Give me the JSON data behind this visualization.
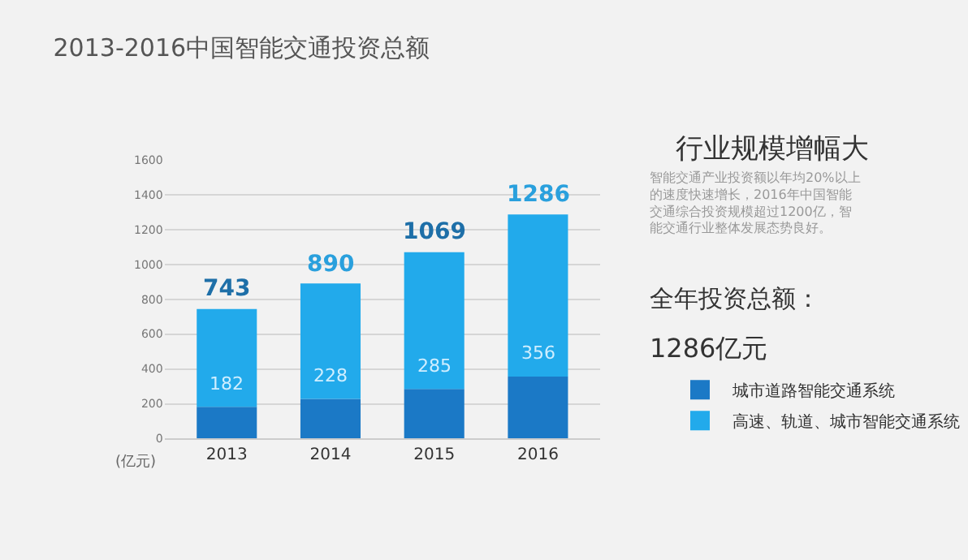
{
  "chart_data": {
    "type": "bar",
    "title": "2013-2016中国智能交通投资总额",
    "ylabel": "(亿元)",
    "categories": [
      "2013",
      "2014",
      "2015",
      "2016"
    ],
    "stacked": true,
    "series": [
      {
        "name": "城市道路智能交通系统",
        "color": "#1b79c6",
        "values": [
          182,
          228,
          285,
          356
        ],
        "value_labels": [
          "182",
          "228",
          "285",
          "356"
        ]
      },
      {
        "name": "高速、轨道、城市智能交通系统",
        "color": "#22aaeb",
        "values": [
          561,
          662,
          784,
          930
        ]
      }
    ],
    "totals": [
      "743",
      "890",
      "1069",
      "1286"
    ],
    "ylim": [
      0,
      1600
    ],
    "yticks": [
      0,
      200,
      400,
      600,
      800,
      1000,
      1200,
      1400,
      1600
    ],
    "grid": "y",
    "legend": "bottom right",
    "annotations": [
      "行业规模增幅大",
      "智能交通产业投资额以年均20%以上的速度快速增长，2016年中国智能交通综合投资规模超过1200亿，智能交通行业整体发展态势良好。",
      "全年投资总额：",
      "1286亿元"
    ]
  }
}
